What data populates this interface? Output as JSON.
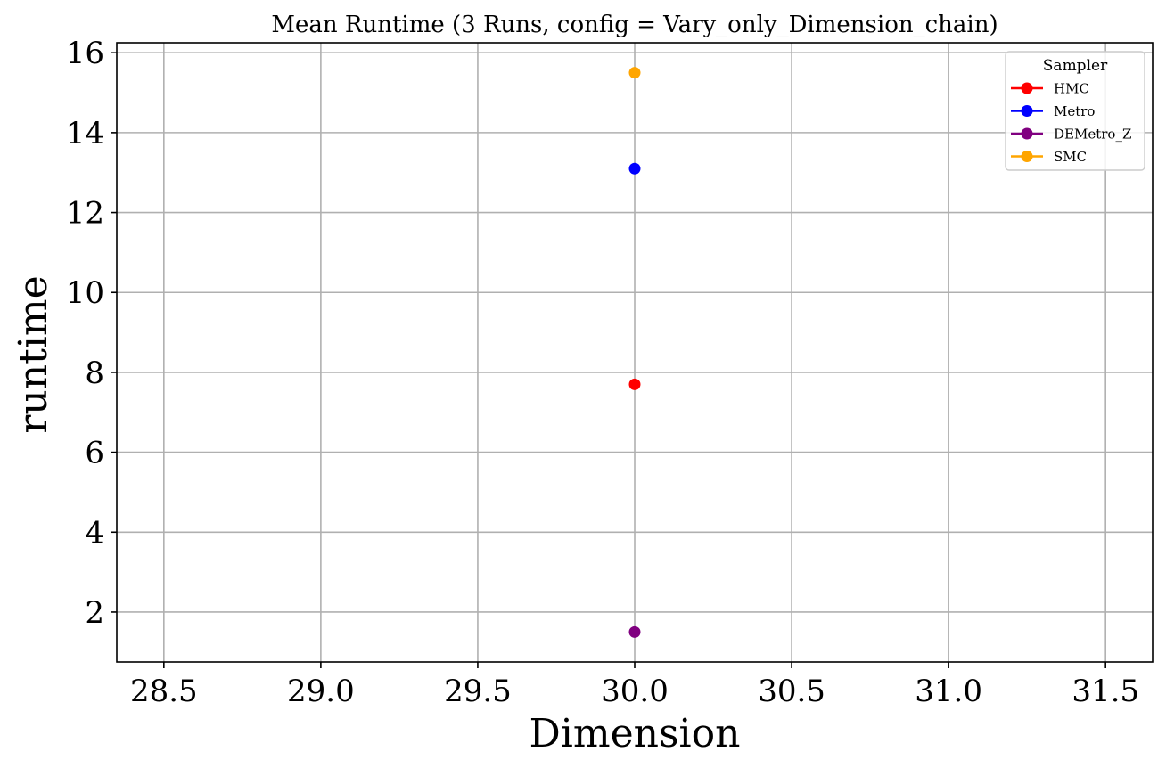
{
  "chart_data": {
    "type": "scatter",
    "title": "Mean Runtime (3 Runs, config = Vary_only_Dimension_chain)",
    "xlabel": "Dimension",
    "ylabel": "runtime",
    "xlim": [
      28.35,
      31.65
    ],
    "ylim": [
      0.75,
      16.25
    ],
    "xticks": [
      28.5,
      29.0,
      29.5,
      30.0,
      30.5,
      31.0,
      31.5
    ],
    "xtick_labels": [
      "28.5",
      "29.0",
      "29.5",
      "30.0",
      "30.5",
      "31.0",
      "31.5"
    ],
    "yticks": [
      2,
      4,
      6,
      8,
      10,
      12,
      14,
      16
    ],
    "ytick_labels": [
      "2",
      "4",
      "6",
      "8",
      "10",
      "12",
      "14",
      "16"
    ],
    "grid": true,
    "legend": {
      "title": "Sampler",
      "placement": "top-right"
    },
    "series": [
      {
        "name": "HMC",
        "color": "#ff0000",
        "x": [
          30.0
        ],
        "y": [
          7.7
        ]
      },
      {
        "name": "Metro",
        "color": "#0000ff",
        "x": [
          30.0
        ],
        "y": [
          13.1
        ]
      },
      {
        "name": "DEMetro_Z",
        "color": "#800080",
        "x": [
          30.0
        ],
        "y": [
          1.5
        ]
      },
      {
        "name": "SMC",
        "color": "#ffa500",
        "x": [
          30.0
        ],
        "y": [
          15.5
        ]
      }
    ]
  }
}
